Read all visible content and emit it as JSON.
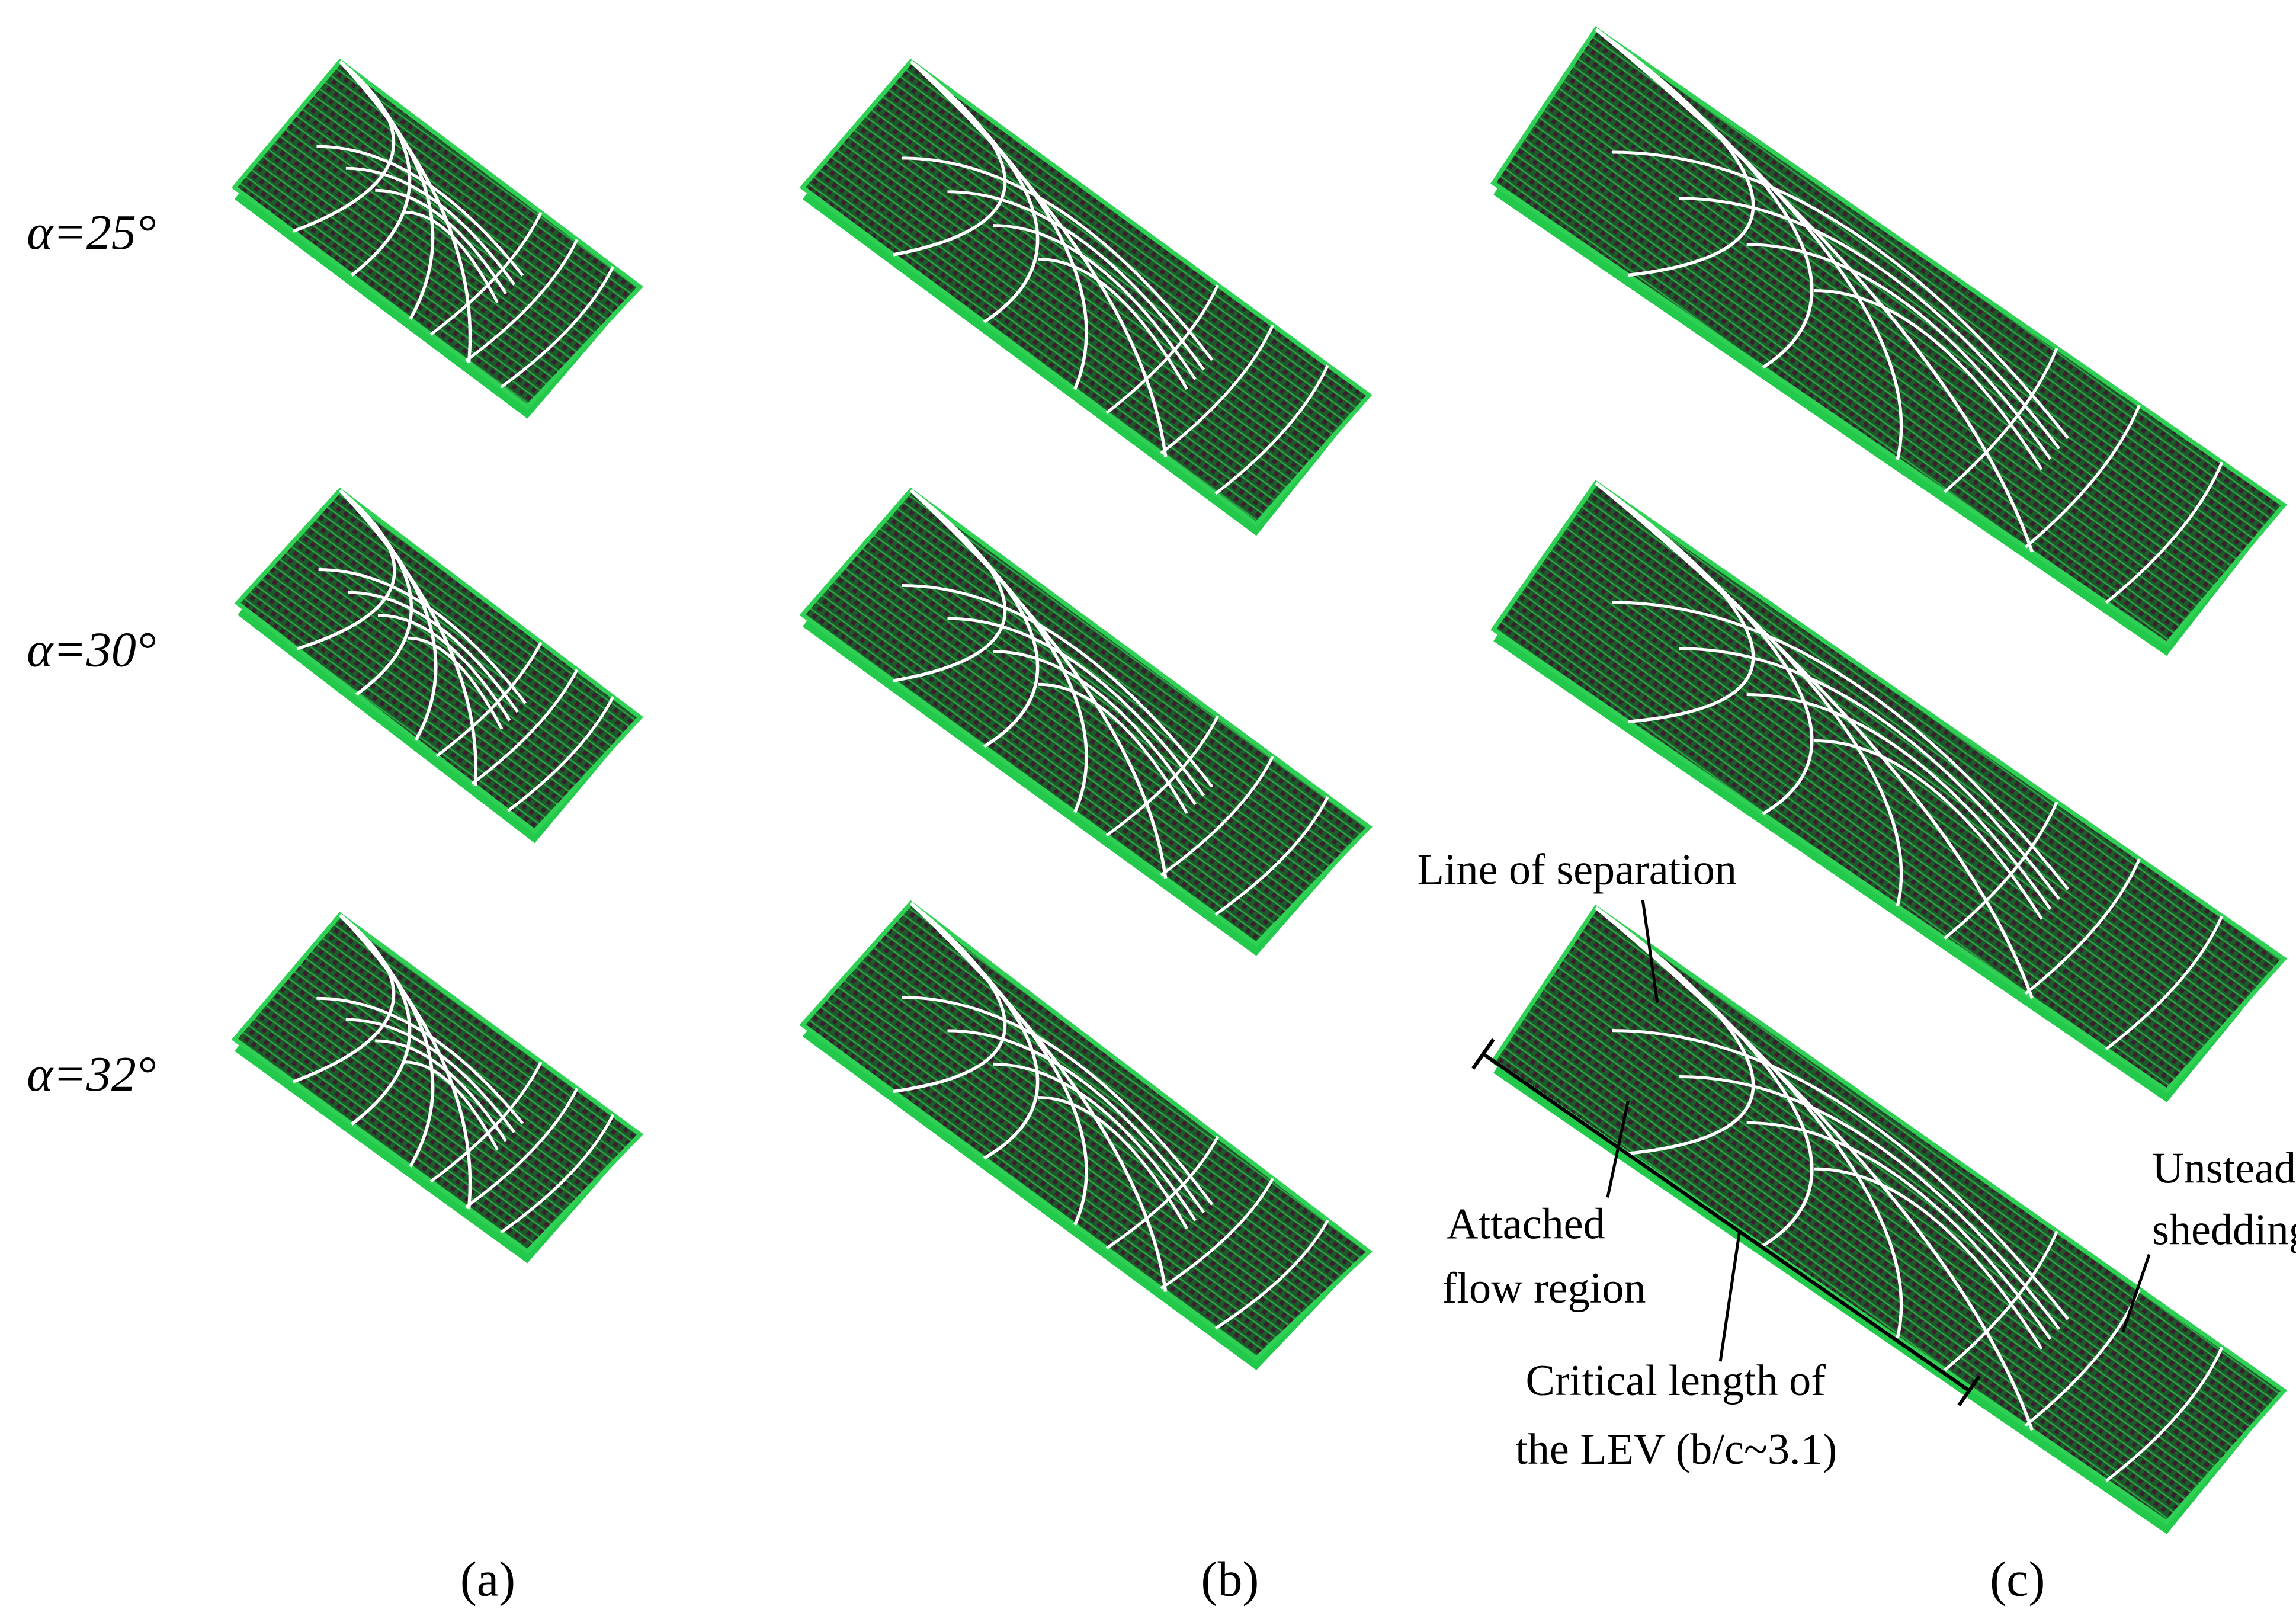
{
  "row_labels": [
    "α=25°",
    "α=30°",
    "α=32°"
  ],
  "column_labels": [
    "(a)",
    "(b)",
    "(c)"
  ],
  "annotations": {
    "line_of_separation": [
      "Line of separation"
    ],
    "attached_flow_region": [
      "Attached",
      "flow region"
    ],
    "critical_length": [
      "Critical length of",
      "the LEV (b/c~3.1)"
    ],
    "unsteady_shedding": [
      "Unsteady",
      "shedding"
    ]
  }
}
